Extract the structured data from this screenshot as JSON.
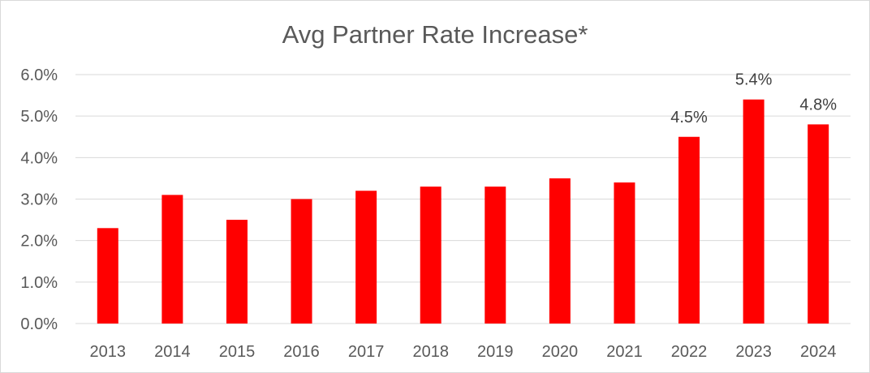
{
  "chart_data": {
    "type": "bar",
    "title": "Avg Partner Rate Increase*",
    "xlabel": "",
    "ylabel": "",
    "categories": [
      "2013",
      "2014",
      "2015",
      "2016",
      "2017",
      "2018",
      "2019",
      "2020",
      "2021",
      "2022",
      "2023",
      "2024"
    ],
    "values": [
      2.3,
      3.1,
      2.5,
      3.0,
      3.2,
      3.3,
      3.3,
      3.5,
      3.4,
      4.5,
      5.4,
      4.8
    ],
    "value_unit": "%",
    "ylim": [
      0,
      6
    ],
    "yticks": [
      "0.0%",
      "1.0%",
      "2.0%",
      "3.0%",
      "4.0%",
      "5.0%",
      "6.0%"
    ],
    "data_labels": [
      {
        "category": "2022",
        "text": "4.5%"
      },
      {
        "category": "2023",
        "text": "5.4%"
      },
      {
        "category": "2024",
        "text": "4.8%"
      }
    ],
    "grid": true,
    "legend": "none",
    "bar_color": "#ff0000"
  }
}
